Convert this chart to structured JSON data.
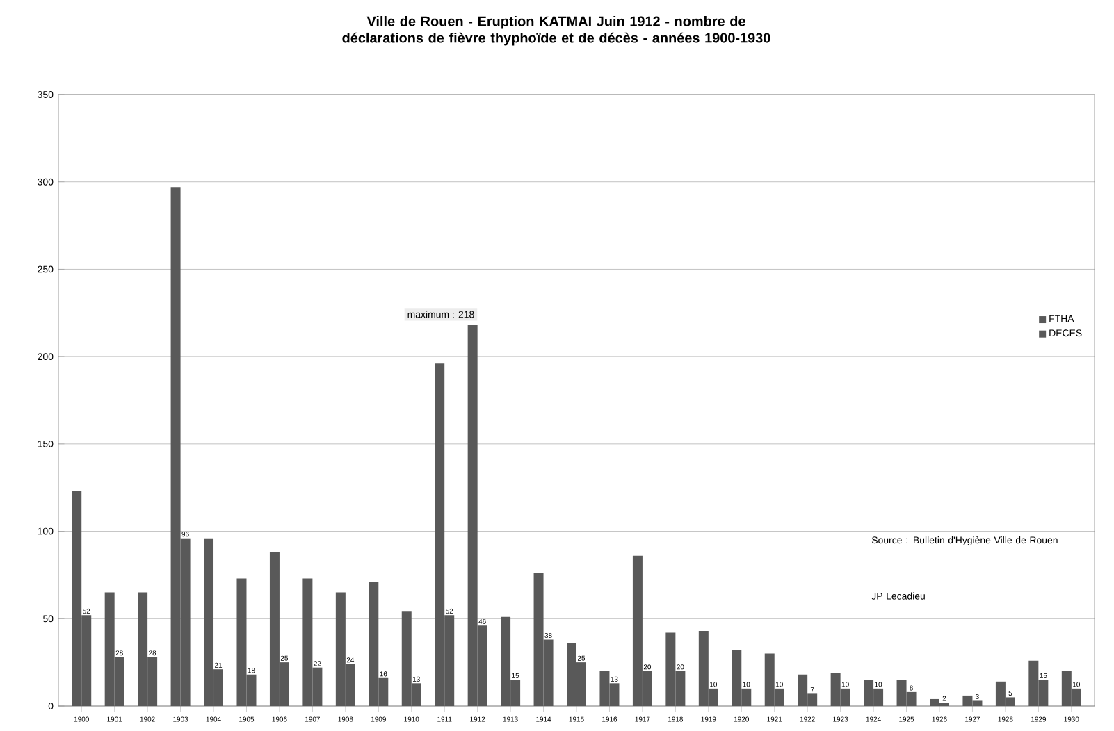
{
  "chart_data": {
    "type": "bar",
    "title": "Ville de Rouen - Eruption KATMAI Juin 1912 - nombre de déclarations de fièvre thyphoïde et de décès - années 1900-1930",
    "categories": [
      "1900",
      "1901",
      "1902",
      "1903",
      "1904",
      "1905",
      "1906",
      "1907",
      "1908",
      "1909",
      "1910",
      "1911",
      "1912",
      "1913",
      "1914",
      "1915",
      "1916",
      "1917",
      "1918",
      "1919",
      "1920",
      "1921",
      "1922",
      "1923",
      "1924",
      "1925",
      "1926",
      "1927",
      "1928",
      "1929",
      "1930"
    ],
    "series": [
      {
        "name": "FTHA",
        "color": "#595959",
        "values": [
          123,
          65,
          65,
          297,
          96,
          73,
          88,
          73,
          65,
          71,
          54,
          196,
          218,
          51,
          76,
          36,
          20,
          86,
          42,
          43,
          32,
          30,
          18,
          19,
          15,
          15,
          4,
          6,
          14,
          26,
          20
        ]
      },
      {
        "name": "DECES",
        "color": "#595959",
        "values": [
          52,
          28,
          28,
          96,
          21,
          18,
          25,
          22,
          24,
          16,
          13,
          52,
          46,
          15,
          38,
          25,
          13,
          20,
          20,
          10,
          10,
          10,
          7,
          10,
          10,
          8,
          2,
          3,
          5,
          15,
          10
        ],
        "value_labels": [
          "52",
          "28",
          "28",
          "96",
          "21",
          "18",
          "25",
          "22",
          "24",
          "16",
          "13",
          "52",
          "46",
          "15",
          "38",
          "25",
          "13",
          "20",
          "20",
          "10",
          "10",
          "10",
          "7",
          "10",
          "10",
          "8",
          "2",
          "3",
          "5",
          "15",
          "10"
        ]
      }
    ],
    "ylim": [
      0,
      350
    ],
    "yticks": [
      0,
      50,
      100,
      150,
      200,
      250,
      300,
      350
    ],
    "grid": "y",
    "legend": "right",
    "annotations": [
      {
        "text": "maximum : 218",
        "x": "1912",
        "y": 218
      },
      "Source : Bulletin d'Hygiène Ville de Rouen",
      "JP Lecadieu"
    ]
  }
}
